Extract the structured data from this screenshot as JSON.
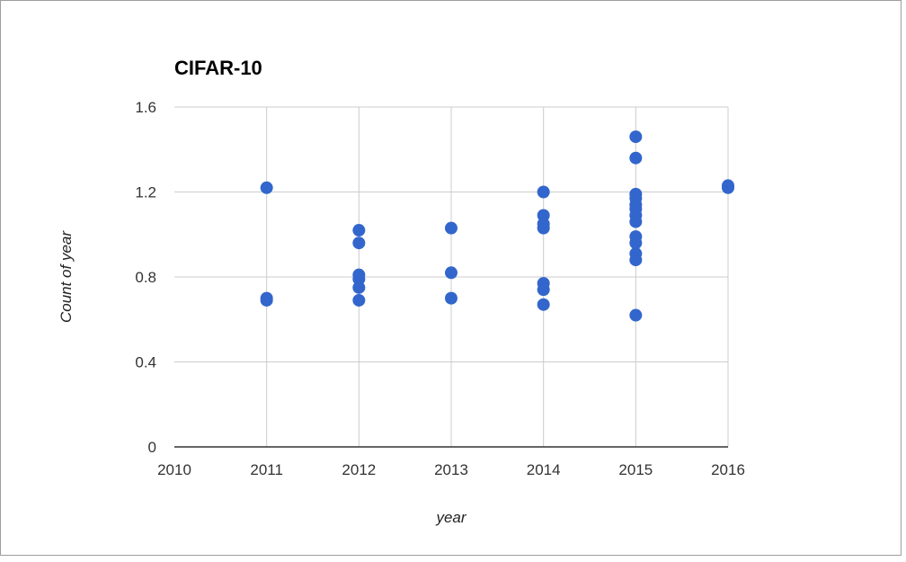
{
  "chart_data": {
    "type": "scatter",
    "title": "CIFAR-10",
    "xlabel": "year",
    "ylabel": "Count of year",
    "xlim": [
      2010,
      2016
    ],
    "ylim": [
      0,
      1.6
    ],
    "xticks": [
      "2010",
      "2011",
      "2012",
      "2013",
      "2014",
      "2015",
      "2016"
    ],
    "yticks": [
      "0",
      "0.4",
      "0.8",
      "1.2",
      "1.6"
    ],
    "grid": true,
    "legend": "none",
    "point_color": "#3366cc",
    "points": [
      {
        "x": 2011,
        "y": 1.22
      },
      {
        "x": 2011,
        "y": 0.7
      },
      {
        "x": 2011,
        "y": 0.69
      },
      {
        "x": 2012,
        "y": 1.02
      },
      {
        "x": 2012,
        "y": 0.96
      },
      {
        "x": 2012,
        "y": 0.81
      },
      {
        "x": 2012,
        "y": 0.79
      },
      {
        "x": 2012,
        "y": 0.75
      },
      {
        "x": 2012,
        "y": 0.69
      },
      {
        "x": 2013,
        "y": 1.03
      },
      {
        "x": 2013,
        "y": 0.82
      },
      {
        "x": 2013,
        "y": 0.7
      },
      {
        "x": 2014,
        "y": 1.2
      },
      {
        "x": 2014,
        "y": 1.09
      },
      {
        "x": 2014,
        "y": 1.05
      },
      {
        "x": 2014,
        "y": 1.03
      },
      {
        "x": 2014,
        "y": 0.77
      },
      {
        "x": 2014,
        "y": 0.74
      },
      {
        "x": 2014,
        "y": 0.67
      },
      {
        "x": 2015,
        "y": 1.46
      },
      {
        "x": 2015,
        "y": 1.36
      },
      {
        "x": 2015,
        "y": 1.19
      },
      {
        "x": 2015,
        "y": 1.17
      },
      {
        "x": 2015,
        "y": 1.14
      },
      {
        "x": 2015,
        "y": 1.12
      },
      {
        "x": 2015,
        "y": 1.09
      },
      {
        "x": 2015,
        "y": 1.06
      },
      {
        "x": 2015,
        "y": 0.99
      },
      {
        "x": 2015,
        "y": 0.96
      },
      {
        "x": 2015,
        "y": 0.91
      },
      {
        "x": 2015,
        "y": 0.88
      },
      {
        "x": 2015,
        "y": 0.62
      },
      {
        "x": 2016,
        "y": 1.23
      },
      {
        "x": 2016,
        "y": 1.22
      }
    ]
  }
}
